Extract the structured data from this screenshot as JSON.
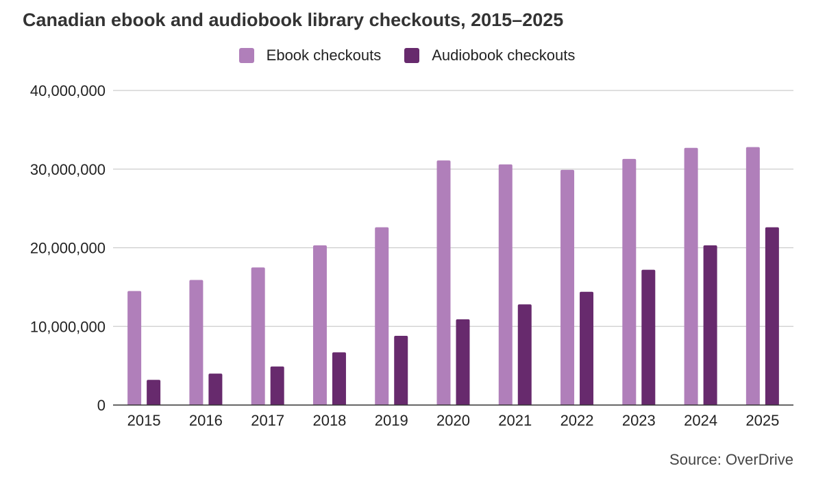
{
  "chart_data": {
    "type": "bar",
    "title": "Canadian ebook and audiobook library checkouts, 2015–2025",
    "source": "Source: OverDrive",
    "categories": [
      "2015",
      "2016",
      "2017",
      "2018",
      "2019",
      "2020",
      "2021",
      "2022",
      "2023",
      "2024",
      "2025"
    ],
    "series": [
      {
        "name": "Ebook checkouts",
        "color": "#b07fba",
        "values": [
          14500000,
          15900000,
          17500000,
          20300000,
          22600000,
          31100000,
          30600000,
          29900000,
          31300000,
          32700000,
          32800000
        ]
      },
      {
        "name": "Audiobook checkouts",
        "color": "#672a6d",
        "values": [
          3200000,
          4000000,
          4900000,
          6700000,
          8800000,
          10900000,
          12800000,
          14400000,
          17200000,
          20300000,
          22600000
        ]
      }
    ],
    "ylim": [
      0,
      40000000
    ],
    "yticks": [
      0,
      10000000,
      20000000,
      30000000,
      40000000
    ],
    "ytick_labels": [
      "0",
      "10,000,000",
      "20,000,000",
      "30,000,000",
      "40,000,000"
    ],
    "grid": true,
    "legend_position": "top-center",
    "xlabel": "",
    "ylabel": ""
  }
}
